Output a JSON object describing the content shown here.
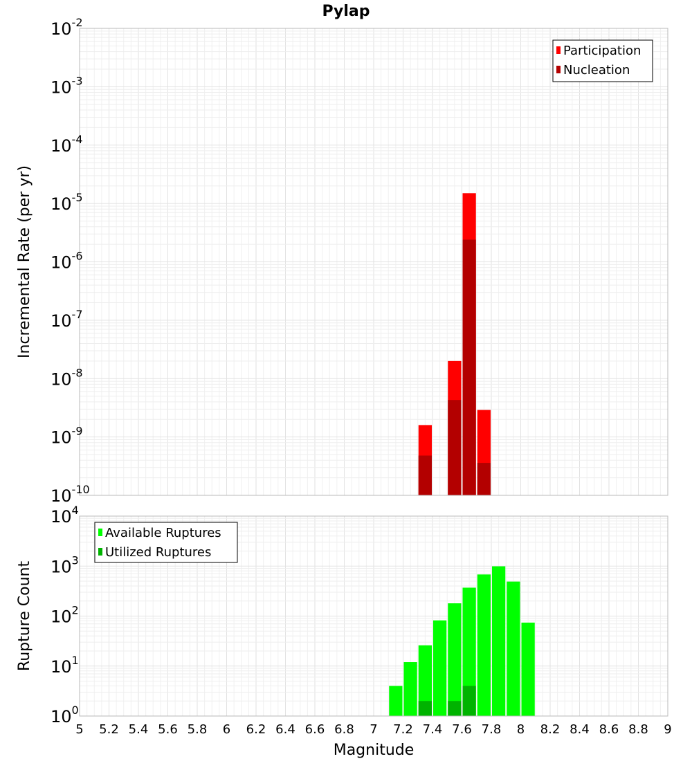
{
  "title": "Pylap",
  "chart_data": [
    {
      "type": "bar",
      "ylabel": "Incremental Rate (per yr)",
      "yscale": "log",
      "ylim_exponents": [
        -10,
        -2
      ],
      "xlim": [
        5,
        9
      ],
      "grid": true,
      "legend_position": "top-right",
      "series": [
        {
          "name": "Participation",
          "color": "#ff0000",
          "points": [
            {
              "x": 7.35,
              "y": 1.6e-09
            },
            {
              "x": 7.55,
              "y": 2e-08
            },
            {
              "x": 7.65,
              "y": 1.5e-05
            },
            {
              "x": 7.75,
              "y": 2.9e-09
            }
          ]
        },
        {
          "name": "Nucleation",
          "color": "#b30000",
          "points": [
            {
              "x": 7.35,
              "y": 4.8e-10
            },
            {
              "x": 7.55,
              "y": 4.3e-09
            },
            {
              "x": 7.65,
              "y": 2.4e-06
            },
            {
              "x": 7.75,
              "y": 3.6e-10
            }
          ]
        }
      ]
    },
    {
      "type": "bar",
      "ylabel": "Rupture Count",
      "xlabel": "Magnitude",
      "yscale": "log",
      "ylim_exponents": [
        0,
        4
      ],
      "xlim": [
        5,
        9
      ],
      "xticks": [
        "5",
        "5.2",
        "5.4",
        "5.6",
        "5.8",
        "6",
        "6.2",
        "6.4",
        "6.6",
        "6.8",
        "7",
        "7.2",
        "7.4",
        "7.6",
        "7.8",
        "8",
        "8.2",
        "8.4",
        "8.6",
        "8.8",
        "9"
      ],
      "grid": true,
      "legend_position": "top-left",
      "series": [
        {
          "name": "Available Ruptures",
          "color": "#00ff00",
          "points": [
            {
              "x": 6.85,
              "y": 1
            },
            {
              "x": 7.15,
              "y": 4
            },
            {
              "x": 7.25,
              "y": 12
            },
            {
              "x": 7.35,
              "y": 26
            },
            {
              "x": 7.45,
              "y": 82
            },
            {
              "x": 7.55,
              "y": 180
            },
            {
              "x": 7.65,
              "y": 370
            },
            {
              "x": 7.75,
              "y": 680
            },
            {
              "x": 7.85,
              "y": 990
            },
            {
              "x": 7.95,
              "y": 490
            },
            {
              "x": 8.05,
              "y": 74
            },
            {
              "x": 8.15,
              "y": 1
            }
          ]
        },
        {
          "name": "Utilized Ruptures",
          "color": "#00b300",
          "points": [
            {
              "x": 7.35,
              "y": 2
            },
            {
              "x": 7.45,
              "y": 1
            },
            {
              "x": 7.55,
              "y": 2
            },
            {
              "x": 7.65,
              "y": 4
            },
            {
              "x": 7.75,
              "y": 1
            }
          ]
        }
      ]
    }
  ]
}
